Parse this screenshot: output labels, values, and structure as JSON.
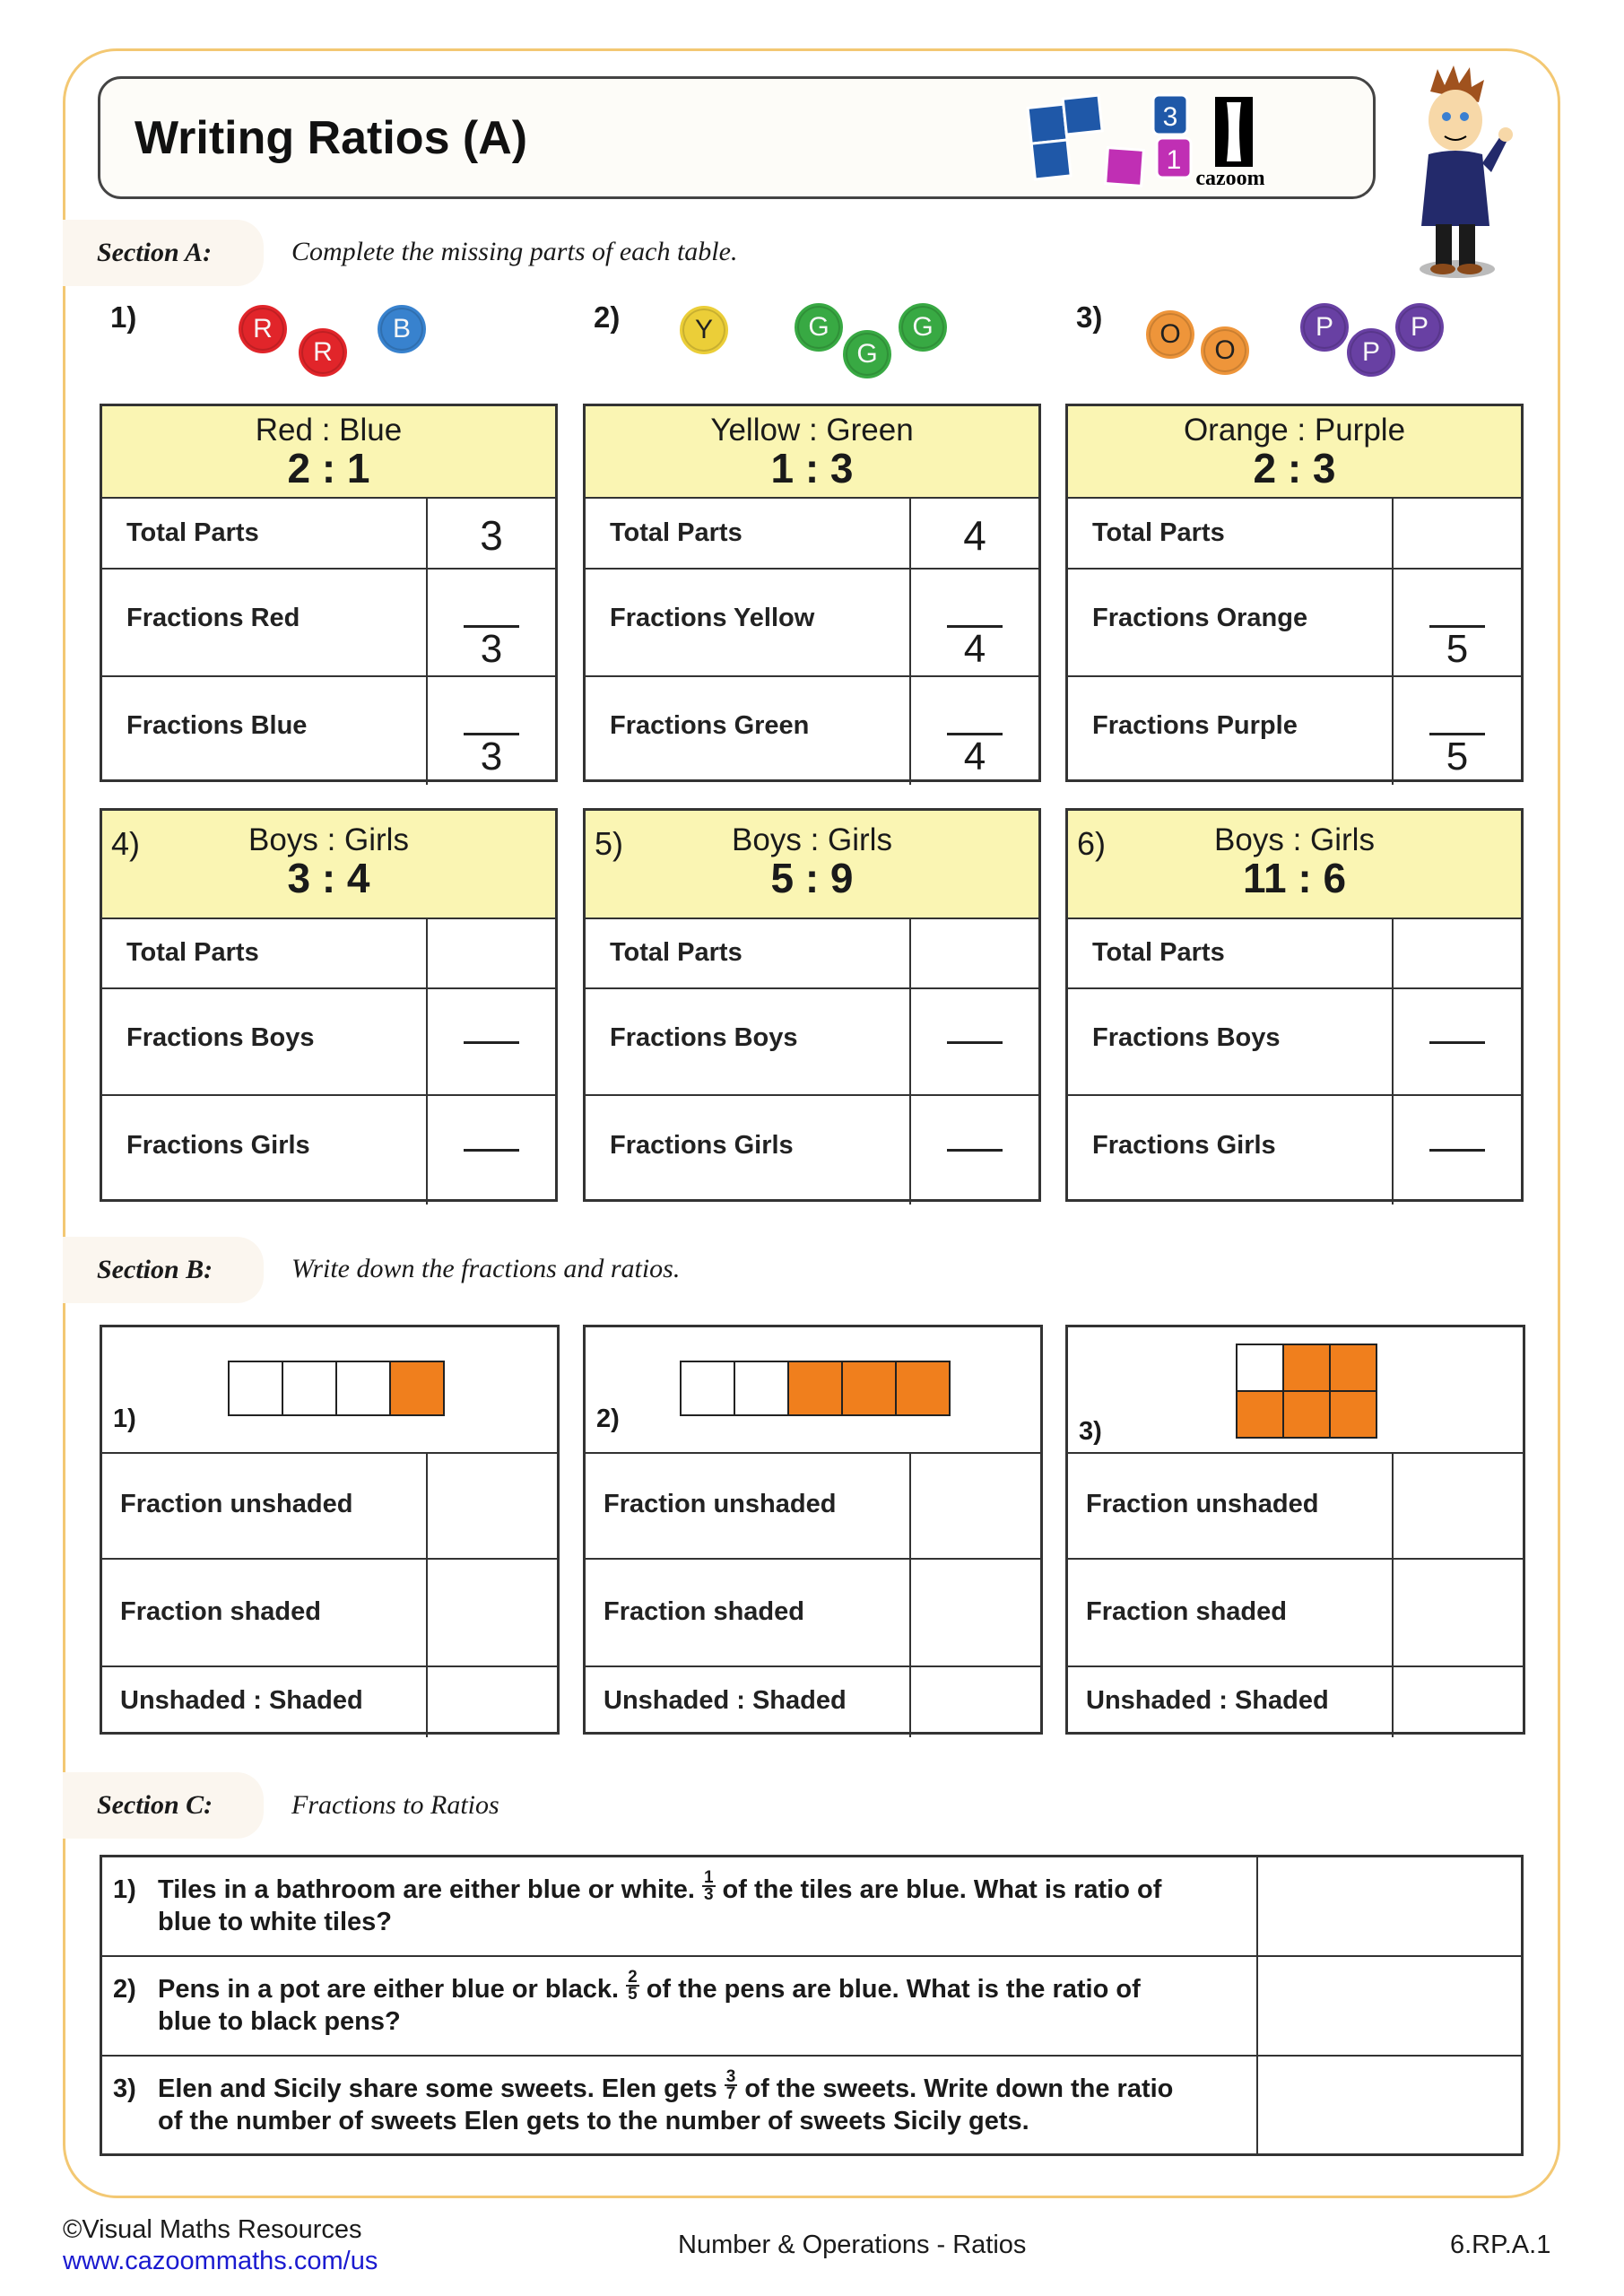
{
  "title": "Writing Ratios (A)",
  "brand": {
    "logo_text": "cazoom!",
    "tile_numbers": [
      "3",
      "1"
    ],
    "colors": {
      "blue": "#1f58a8",
      "magenta": "#c02fb4"
    }
  },
  "colors": {
    "frame": "#f3c873",
    "header": "#faf5b3",
    "shade": "#f07f1d"
  },
  "section_a": {
    "label": "Section A:",
    "instruction": "Complete the missing parts of each table.",
    "problems": [
      {
        "num": "1)",
        "circles": [
          {
            "letter": "R",
            "color": "#e8262b"
          },
          {
            "letter": "R",
            "color": "#e8262b"
          },
          {
            "letter": "B",
            "color": "#3a86d4"
          }
        ],
        "header": "Red : Blue",
        "ratio": "2 : 1",
        "rows": [
          {
            "label": "Total Parts",
            "value": "3"
          },
          {
            "label": "Fractions Red",
            "denominator": "3"
          },
          {
            "label": "Fractions Blue",
            "denominator": "3"
          }
        ]
      },
      {
        "num": "2)",
        "circles": [
          {
            "letter": "Y",
            "color": "#f2d43a"
          },
          {
            "letter": "G",
            "color": "#3aae45"
          },
          {
            "letter": "G",
            "color": "#3aae45"
          },
          {
            "letter": "G",
            "color": "#3aae45"
          }
        ],
        "header": "Yellow : Green",
        "ratio": "1 : 3",
        "rows": [
          {
            "label": "Total Parts",
            "value": "4"
          },
          {
            "label": "Fractions Yellow",
            "denominator": "4"
          },
          {
            "label": "Fractions Green",
            "denominator": "4"
          }
        ]
      },
      {
        "num": "3)",
        "circles": [
          {
            "letter": "O",
            "color": "#f59a3c"
          },
          {
            "letter": "O",
            "color": "#f59a3c"
          },
          {
            "letter": "P",
            "color": "#6b42a8"
          },
          {
            "letter": "P",
            "color": "#6b42a8"
          },
          {
            "letter": "P",
            "color": "#6b42a8"
          }
        ],
        "header": "Orange : Purple",
        "ratio": "2 : 3",
        "rows": [
          {
            "label": "Total Parts",
            "value": ""
          },
          {
            "label": "Fractions Orange",
            "denominator": "5"
          },
          {
            "label": "Fractions Purple",
            "denominator": "5"
          }
        ]
      },
      {
        "num": "4)",
        "header": "Boys : Girls",
        "ratio": "3 : 4",
        "rows": [
          {
            "label": "Total Parts",
            "value": ""
          },
          {
            "label": "Fractions Boys",
            "denominator": ""
          },
          {
            "label": "Fractions Girls",
            "denominator": ""
          }
        ]
      },
      {
        "num": "5)",
        "header": "Boys : Girls",
        "ratio": "5 : 9",
        "rows": [
          {
            "label": "Total Parts",
            "value": ""
          },
          {
            "label": "Fractions Boys",
            "denominator": ""
          },
          {
            "label": "Fractions Girls",
            "denominator": ""
          }
        ]
      },
      {
        "num": "6)",
        "header": "Boys : Girls",
        "ratio": "11 : 6",
        "rows": [
          {
            "label": "Total Parts",
            "value": ""
          },
          {
            "label": "Fractions Boys",
            "denominator": ""
          },
          {
            "label": "Fractions Girls",
            "denominator": ""
          }
        ]
      }
    ]
  },
  "section_b": {
    "label": "Section B:",
    "instruction": "Write down the fractions and ratios.",
    "problems": [
      {
        "num": "1)",
        "layout": "row",
        "cells": [
          0,
          0,
          0,
          1
        ],
        "rows": [
          "Fraction unshaded",
          "Fraction shaded",
          "Unshaded : Shaded"
        ]
      },
      {
        "num": "2)",
        "layout": "row",
        "cells": [
          0,
          0,
          1,
          1,
          1
        ],
        "rows": [
          "Fraction unshaded",
          "Fraction shaded",
          "Unshaded : Shaded"
        ]
      },
      {
        "num": "3)",
        "layout": "grid",
        "cells": [
          0,
          1,
          1,
          1,
          1,
          1
        ],
        "rows": [
          "Fraction unshaded",
          "Fraction shaded",
          "Unshaded : Shaded"
        ]
      }
    ]
  },
  "section_c": {
    "label": "Section C:",
    "instruction": "Fractions to Ratios",
    "questions": [
      {
        "num": "1)",
        "pre": "Tiles in a bathroom are either blue or white.",
        "numerator": "1",
        "denominator": "3",
        "post": "of the tiles are blue. What is ratio of",
        "line2": "blue to white tiles?"
      },
      {
        "num": "2)",
        "pre": "Pens in a pot are either blue or black.",
        "numerator": "2",
        "denominator": "5",
        "post": "of the pens are blue. What is the ratio of",
        "line2": "blue to black pens?"
      },
      {
        "num": "3)",
        "pre": "Elen and Sicily share some sweets. Elen gets",
        "numerator": "3",
        "denominator": "7",
        "post": "of the sweets. Write down the ratio",
        "line2": "of the number of sweets Elen gets to the number of sweets Sicily gets."
      }
    ]
  },
  "footer": {
    "copyright": "©Visual Maths Resources",
    "url": "www.cazoommaths.com/us",
    "topic": "Number & Operations - Ratios",
    "standard": "6.RP.A.1"
  }
}
